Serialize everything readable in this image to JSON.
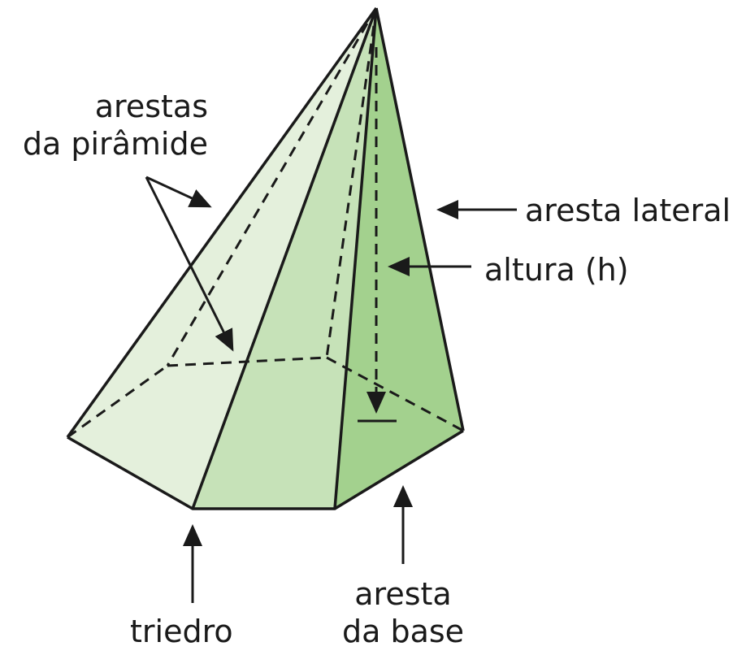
{
  "labels": {
    "arestas_da_piramide": [
      "arestas",
      "da pirâmide"
    ],
    "aresta_lateral": "aresta lateral",
    "altura": "altura (h)",
    "triedro": "triedro",
    "aresta_da_base": [
      "aresta",
      "da base"
    ]
  },
  "colors": {
    "face_left": "#e4f0dc",
    "face_front": "#c6e2b8",
    "face_right": "#a3d18e",
    "stroke": "#1a1a1a"
  }
}
